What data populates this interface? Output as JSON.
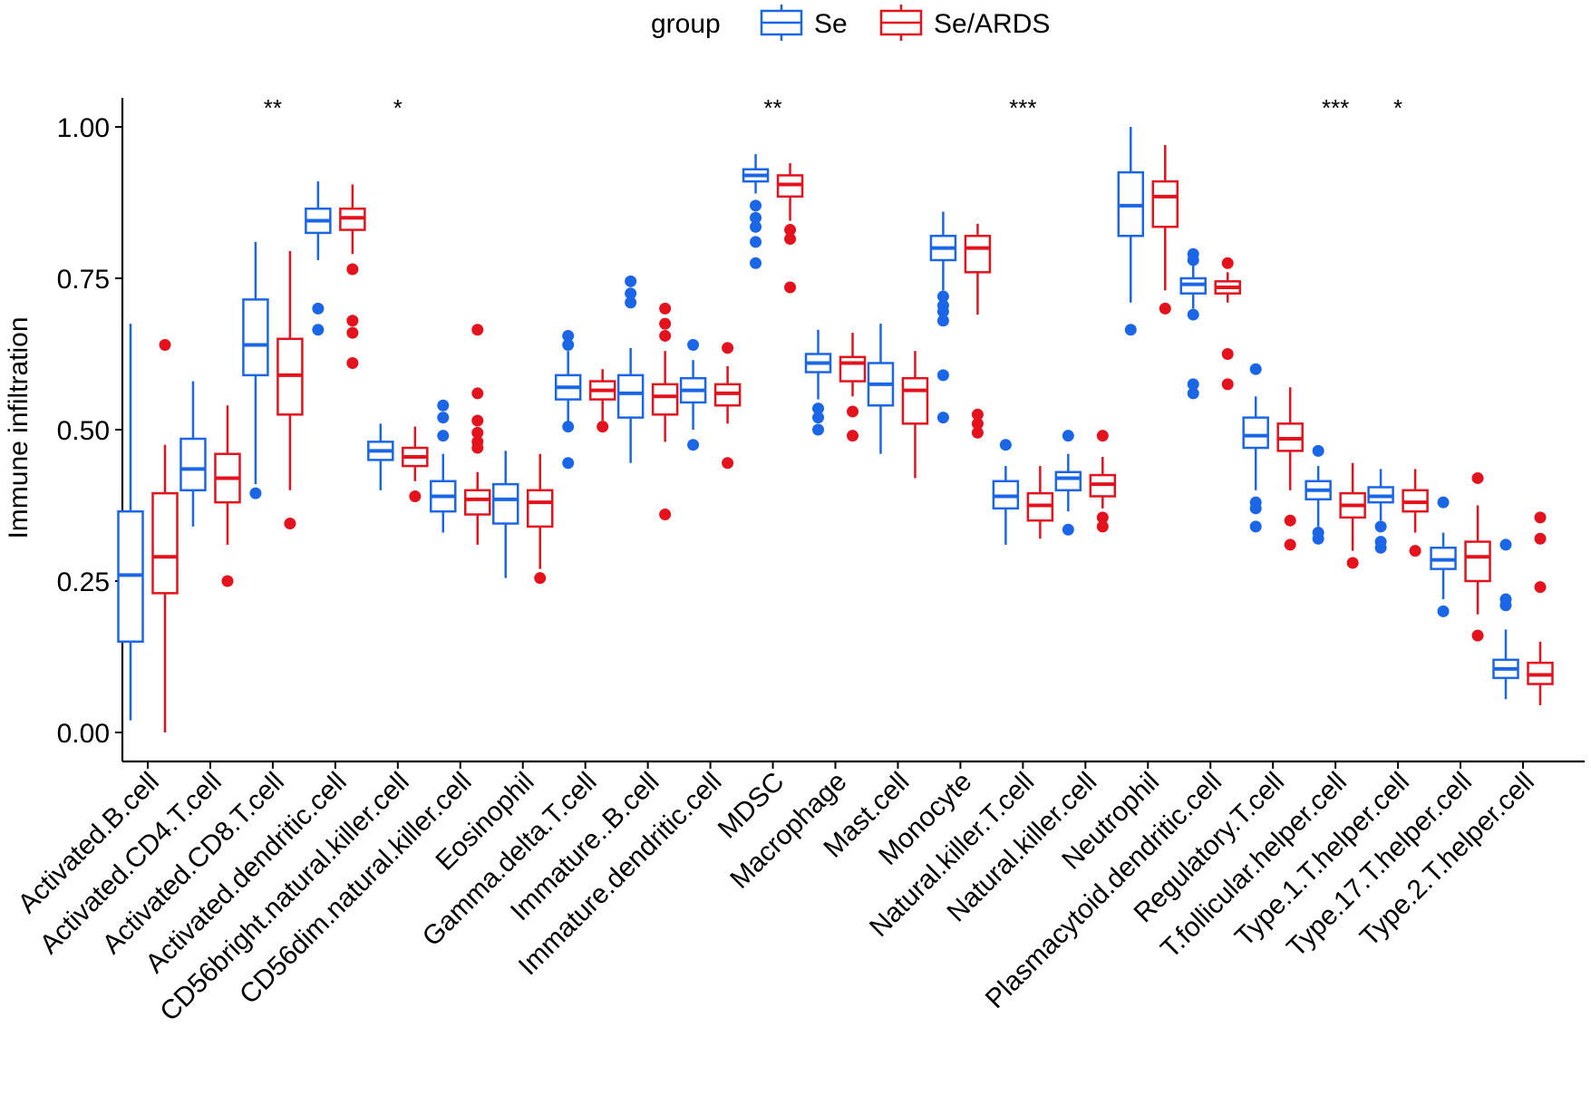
{
  "chart_data": {
    "type": "boxplot",
    "ylabel": "Immune infiltration",
    "xlabel": "",
    "ylim": [
      -0.05,
      1.05
    ],
    "yticks": [
      0.0,
      0.25,
      0.5,
      0.75,
      1.0
    ],
    "ytick_labels": [
      "0.00",
      "0.25",
      "0.50",
      "0.75",
      "1.00"
    ],
    "legend": {
      "title": "group",
      "position": "top",
      "entries": [
        {
          "name": "Se",
          "color": "#1a66e6"
        },
        {
          "name": "Se/ARDS",
          "color": "#e3121c"
        }
      ]
    },
    "categories": [
      "Activated.B.cell",
      "Activated.CD4.T.cell",
      "Activated.CD8.T.cell",
      "Activated.dendritic.cell",
      "CD56bright.natural.killer.cell",
      "CD56dim.natural.killer.cell",
      "Eosinophil",
      "Gamma.delta.T.cell",
      "Immature..B.cell",
      "Immature.dendritic.cell",
      "MDSC",
      "Macrophage",
      "Mast.cell",
      "Monocyte",
      "Natural.killer.T.cell",
      "Natural.killer.cell",
      "Neutrophil",
      "Plasmacytoid.dendritic.cell",
      "Regulatory.T.cell",
      "T.follicular.helper.cell",
      "Type.1.T.helper.cell",
      "Type.17.T.helper.cell",
      "Type.2.T.helper.cell"
    ],
    "significance": [
      "",
      "",
      "**",
      "",
      "*",
      "",
      "",
      "",
      "",
      "",
      "**",
      "",
      "",
      "",
      "***",
      "",
      "",
      "",
      "",
      "***",
      "*",
      "",
      ""
    ],
    "series": [
      {
        "name": "Se",
        "color": "#1a66e6",
        "boxes": [
          {
            "lo": 0.02,
            "q1": 0.15,
            "med": 0.26,
            "q3": 0.365,
            "hi": 0.675,
            "out": []
          },
          {
            "lo": 0.34,
            "q1": 0.4,
            "med": 0.435,
            "q3": 0.485,
            "hi": 0.58,
            "out": []
          },
          {
            "lo": 0.41,
            "q1": 0.59,
            "med": 0.64,
            "q3": 0.715,
            "hi": 0.81,
            "out": [
              0.395
            ]
          },
          {
            "lo": 0.78,
            "q1": 0.825,
            "med": 0.845,
            "q3": 0.865,
            "hi": 0.91,
            "out": [
              0.7,
              0.665
            ]
          },
          {
            "lo": 0.4,
            "q1": 0.45,
            "med": 0.465,
            "q3": 0.48,
            "hi": 0.51,
            "out": []
          },
          {
            "lo": 0.33,
            "q1": 0.365,
            "med": 0.39,
            "q3": 0.415,
            "hi": 0.46,
            "out": [
              0.54,
              0.52,
              0.49
            ]
          },
          {
            "lo": 0.255,
            "q1": 0.345,
            "med": 0.385,
            "q3": 0.41,
            "hi": 0.465,
            "out": []
          },
          {
            "lo": 0.5,
            "q1": 0.55,
            "med": 0.57,
            "q3": 0.59,
            "hi": 0.63,
            "out": [
              0.655,
              0.64,
              0.505,
              0.445
            ]
          },
          {
            "lo": 0.445,
            "q1": 0.52,
            "med": 0.56,
            "q3": 0.59,
            "hi": 0.635,
            "out": [
              0.745,
              0.725,
              0.71
            ]
          },
          {
            "lo": 0.5,
            "q1": 0.545,
            "med": 0.565,
            "q3": 0.585,
            "hi": 0.615,
            "out": [
              0.64,
              0.475
            ]
          },
          {
            "lo": 0.89,
            "q1": 0.91,
            "med": 0.92,
            "q3": 0.93,
            "hi": 0.955,
            "out": [
              0.87,
              0.85,
              0.835,
              0.81,
              0.775
            ]
          },
          {
            "lo": 0.55,
            "q1": 0.595,
            "med": 0.61,
            "q3": 0.625,
            "hi": 0.665,
            "out": [
              0.535,
              0.52,
              0.5
            ]
          },
          {
            "lo": 0.46,
            "q1": 0.54,
            "med": 0.575,
            "q3": 0.61,
            "hi": 0.675,
            "out": []
          },
          {
            "lo": 0.73,
            "q1": 0.78,
            "med": 0.8,
            "q3": 0.82,
            "hi": 0.86,
            "out": [
              0.72,
              0.705,
              0.695,
              0.68,
              0.59,
              0.52
            ]
          },
          {
            "lo": 0.31,
            "q1": 0.37,
            "med": 0.39,
            "q3": 0.415,
            "hi": 0.44,
            "out": [
              0.475
            ]
          },
          {
            "lo": 0.365,
            "q1": 0.4,
            "med": 0.42,
            "q3": 0.43,
            "hi": 0.46,
            "out": [
              0.49,
              0.335
            ]
          },
          {
            "lo": 0.71,
            "q1": 0.82,
            "med": 0.87,
            "q3": 0.925,
            "hi": 1.0,
            "out": [
              0.665
            ]
          },
          {
            "lo": 0.7,
            "q1": 0.725,
            "med": 0.74,
            "q3": 0.75,
            "hi": 0.775,
            "out": [
              0.79,
              0.78,
              0.69,
              0.575,
              0.56
            ]
          },
          {
            "lo": 0.4,
            "q1": 0.47,
            "med": 0.49,
            "q3": 0.52,
            "hi": 0.555,
            "out": [
              0.6,
              0.38,
              0.37,
              0.34
            ]
          },
          {
            "lo": 0.34,
            "q1": 0.385,
            "med": 0.4,
            "q3": 0.415,
            "hi": 0.44,
            "out": [
              0.465,
              0.33,
              0.32
            ]
          },
          {
            "lo": 0.35,
            "q1": 0.38,
            "med": 0.39,
            "q3": 0.405,
            "hi": 0.435,
            "out": [
              0.34,
              0.315,
              0.305
            ]
          },
          {
            "lo": 0.22,
            "q1": 0.27,
            "med": 0.285,
            "q3": 0.305,
            "hi": 0.33,
            "out": [
              0.38,
              0.2
            ]
          },
          {
            "lo": 0.055,
            "q1": 0.09,
            "med": 0.105,
            "q3": 0.12,
            "hi": 0.17,
            "out": [
              0.31,
              0.22,
              0.21
            ]
          }
        ]
      },
      {
        "name": "Se/ARDS",
        "color": "#e3121c",
        "boxes": [
          {
            "lo": 0.0,
            "q1": 0.23,
            "med": 0.29,
            "q3": 0.395,
            "hi": 0.475,
            "out": [
              0.64
            ]
          },
          {
            "lo": 0.31,
            "q1": 0.38,
            "med": 0.42,
            "q3": 0.46,
            "hi": 0.54,
            "out": [
              0.25
            ]
          },
          {
            "lo": 0.4,
            "q1": 0.525,
            "med": 0.59,
            "q3": 0.65,
            "hi": 0.795,
            "out": [
              0.345
            ]
          },
          {
            "lo": 0.79,
            "q1": 0.83,
            "med": 0.85,
            "q3": 0.865,
            "hi": 0.905,
            "out": [
              0.765,
              0.68,
              0.66,
              0.61
            ]
          },
          {
            "lo": 0.415,
            "q1": 0.44,
            "med": 0.455,
            "q3": 0.47,
            "hi": 0.505,
            "out": [
              0.39
            ]
          },
          {
            "lo": 0.31,
            "q1": 0.36,
            "med": 0.385,
            "q3": 0.4,
            "hi": 0.43,
            "out": [
              0.665,
              0.56,
              0.515,
              0.495,
              0.48,
              0.47
            ]
          },
          {
            "lo": 0.27,
            "q1": 0.34,
            "med": 0.38,
            "q3": 0.4,
            "hi": 0.46,
            "out": [
              0.255
            ]
          },
          {
            "lo": 0.515,
            "q1": 0.55,
            "med": 0.565,
            "q3": 0.58,
            "hi": 0.6,
            "out": [
              0.505
            ]
          },
          {
            "lo": 0.48,
            "q1": 0.525,
            "med": 0.555,
            "q3": 0.575,
            "hi": 0.63,
            "out": [
              0.7,
              0.675,
              0.655,
              0.36
            ]
          },
          {
            "lo": 0.51,
            "q1": 0.54,
            "med": 0.56,
            "q3": 0.575,
            "hi": 0.605,
            "out": [
              0.635,
              0.445
            ]
          },
          {
            "lo": 0.845,
            "q1": 0.885,
            "med": 0.905,
            "q3": 0.92,
            "hi": 0.94,
            "out": [
              0.83,
              0.815,
              0.735
            ]
          },
          {
            "lo": 0.555,
            "q1": 0.58,
            "med": 0.61,
            "q3": 0.62,
            "hi": 0.66,
            "out": [
              0.53,
              0.49
            ]
          },
          {
            "lo": 0.42,
            "q1": 0.51,
            "med": 0.565,
            "q3": 0.585,
            "hi": 0.63,
            "out": []
          },
          {
            "lo": 0.69,
            "q1": 0.76,
            "med": 0.8,
            "q3": 0.82,
            "hi": 0.84,
            "out": [
              0.525,
              0.51,
              0.495
            ]
          },
          {
            "lo": 0.32,
            "q1": 0.35,
            "med": 0.375,
            "q3": 0.395,
            "hi": 0.44,
            "out": []
          },
          {
            "lo": 0.37,
            "q1": 0.39,
            "med": 0.41,
            "q3": 0.425,
            "hi": 0.455,
            "out": [
              0.49,
              0.355,
              0.34
            ]
          },
          {
            "lo": 0.73,
            "q1": 0.835,
            "med": 0.885,
            "q3": 0.91,
            "hi": 0.97,
            "out": [
              0.7
            ]
          },
          {
            "lo": 0.71,
            "q1": 0.725,
            "med": 0.735,
            "q3": 0.745,
            "hi": 0.76,
            "out": [
              0.775,
              0.625,
              0.575
            ]
          },
          {
            "lo": 0.4,
            "q1": 0.465,
            "med": 0.485,
            "q3": 0.51,
            "hi": 0.57,
            "out": [
              0.35,
              0.31
            ]
          },
          {
            "lo": 0.3,
            "q1": 0.355,
            "med": 0.375,
            "q3": 0.395,
            "hi": 0.445,
            "out": [
              0.28
            ]
          },
          {
            "lo": 0.33,
            "q1": 0.365,
            "med": 0.38,
            "q3": 0.4,
            "hi": 0.435,
            "out": [
              0.3
            ]
          },
          {
            "lo": 0.195,
            "q1": 0.25,
            "med": 0.29,
            "q3": 0.315,
            "hi": 0.375,
            "out": [
              0.42,
              0.16
            ]
          },
          {
            "lo": 0.045,
            "q1": 0.08,
            "med": 0.095,
            "q3": 0.115,
            "hi": 0.15,
            "out": [
              0.355,
              0.32,
              0.24
            ]
          }
        ]
      }
    ]
  }
}
